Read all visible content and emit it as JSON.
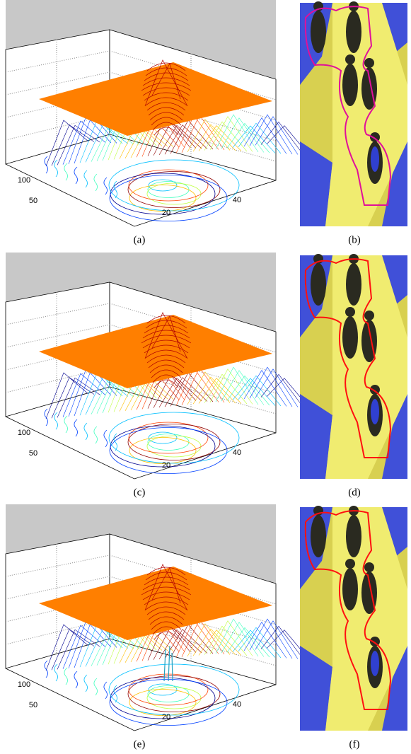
{
  "figure": {
    "rows": [
      {
        "left": {
          "caption": "(a)",
          "y_ticks": [
            100,
            50
          ],
          "x_ticks": [
            40,
            20
          ]
        },
        "right": {
          "caption": "(b)"
        }
      },
      {
        "left": {
          "caption": "(c)",
          "y_ticks": [
            100,
            50
          ],
          "x_ticks": [
            40,
            20
          ]
        },
        "right": {
          "caption": "(d)"
        }
      },
      {
        "left": {
          "caption": "(e)",
          "y_ticks": [
            100,
            50
          ],
          "x_ticks": [
            40,
            20
          ]
        },
        "right": {
          "caption": "(f)"
        }
      }
    ]
  }
}
